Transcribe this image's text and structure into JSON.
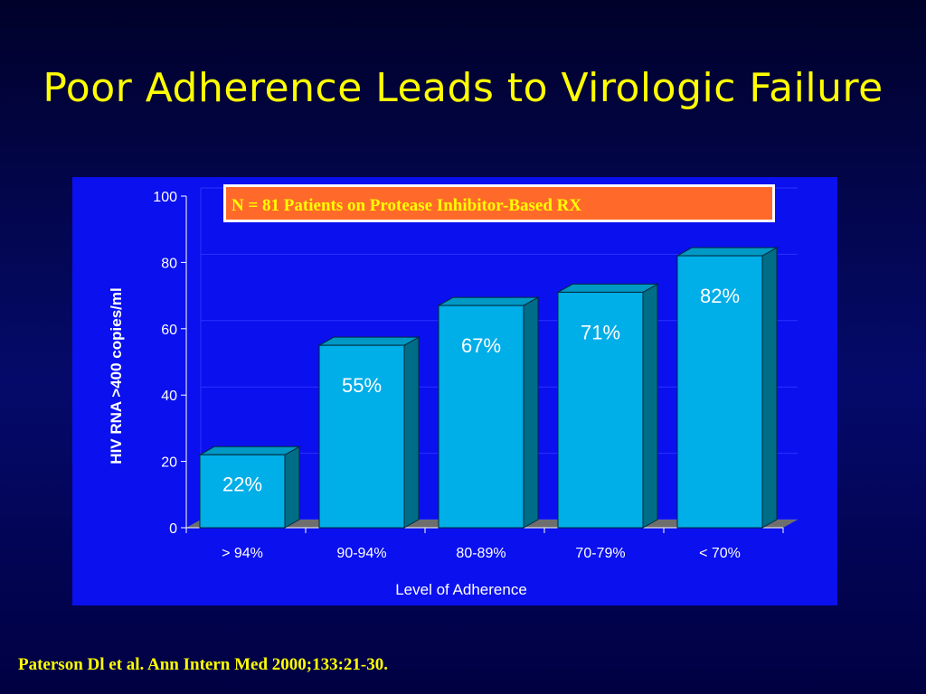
{
  "slide": {
    "title": "Poor Adherence Leads to Virologic Failure",
    "citation": "Paterson Dl et al.  Ann Intern Med 2000;133:21-30."
  },
  "chart_data": {
    "type": "bar",
    "title": "",
    "annotation": "N = 81 Patients on Protease Inhibitor-Based RX",
    "xlabel": "Level of Adherence",
    "ylabel": "HIV RNA >400 copies/ml",
    "categories": [
      "> 94%",
      "90-94%",
      "80-89%",
      "70-79%",
      "< 70%"
    ],
    "values": [
      22,
      55,
      67,
      71,
      82
    ],
    "data_labels": [
      "22%",
      "55%",
      "67%",
      "71%",
      "82%"
    ],
    "ylim": [
      0,
      100
    ],
    "yticks": [
      0,
      20,
      40,
      60,
      80,
      100
    ],
    "ytick_labels": [
      "0",
      "20",
      "40",
      "60",
      "80",
      "100"
    ],
    "grid": true,
    "style": "3d-column",
    "colors": {
      "bar_front": "#00aee8",
      "bar_side": "#006d87",
      "bar_top": "#0098c4",
      "panel_background": "#0a10ee",
      "floor": "#6e6e6e",
      "annotation_fill": "#ff6a2a",
      "annotation_text": "#ffff00",
      "title_text": "#ffff00"
    }
  }
}
